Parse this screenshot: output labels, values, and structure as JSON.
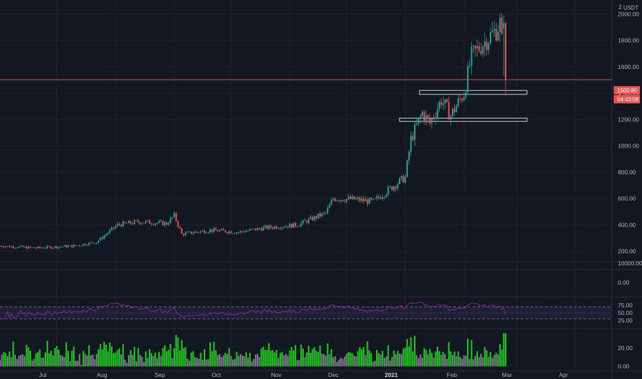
{
  "header": {
    "scale_mode": "2",
    "currency": "USDT"
  },
  "price_axis": {
    "ticks": [
      "2000.00",
      "1800.00",
      "1600.00",
      "1400.00",
      "1200.00",
      "1000.00",
      "800.00",
      "600.00",
      "400.00",
      "200.00"
    ]
  },
  "volume_axis": {
    "ticks": [
      "10000.00",
      "0.00"
    ]
  },
  "rsi_axis": {
    "ticks": [
      "75.00",
      "50.00",
      "25.00"
    ]
  },
  "osc_axis": {
    "ticks": [
      "20.00",
      "0.00"
    ]
  },
  "last_price": {
    "value": "1500.80",
    "countdown": "04:43:08"
  },
  "time_axis": {
    "labels": [
      "Jul",
      "Aug",
      "Sep",
      "Oct",
      "Nov",
      "Dec",
      "2021",
      "Feb",
      "Mar",
      "Apr"
    ]
  },
  "colors": {
    "background": "#131722",
    "up": "#26a69a",
    "down": "#ef5350",
    "rsi": "#9c27b0",
    "hist_up": "#1fc41f",
    "hist": "#787b86",
    "price_line": "#ef5350"
  },
  "chart_data": {
    "type": "candlestick",
    "price_range": [
      130,
      2080
    ],
    "zones": [
      {
        "from": 1390,
        "to": 1420
      },
      {
        "from": 1185,
        "to": 1210
      }
    ],
    "rsi_levels": [
      70,
      30
    ],
    "rsi_range": [
      0,
      100
    ],
    "hist_range": [
      -1,
      40
    ],
    "waypoints": [
      [
        "2020-06-01",
        240
      ],
      [
        "2020-06-20",
        225
      ],
      [
        "2020-07-10",
        240
      ],
      [
        "2020-07-22",
        270
      ],
      [
        "2020-08-02",
        400
      ],
      [
        "2020-08-14",
        425
      ],
      [
        "2020-08-28",
        410
      ],
      [
        "2020-09-01",
        470
      ],
      [
        "2020-09-05",
        330
      ],
      [
        "2020-09-20",
        360
      ],
      [
        "2020-10-05",
        345
      ],
      [
        "2020-10-20",
        380
      ],
      [
        "2020-11-05",
        400
      ],
      [
        "2020-11-20",
        490
      ],
      [
        "2020-11-24",
        600
      ],
      [
        "2020-12-05",
        595
      ],
      [
        "2020-12-15",
        575
      ],
      [
        "2020-12-28",
        720
      ],
      [
        "2021-01-01",
        760
      ],
      [
        "2021-01-04",
        1050
      ],
      [
        "2021-01-10",
        1250
      ],
      [
        "2021-01-14",
        1170
      ],
      [
        "2021-01-20",
        1350
      ],
      [
        "2021-01-25",
        1230
      ],
      [
        "2021-02-01",
        1400
      ],
      [
        "2021-02-05",
        1680
      ],
      [
        "2021-02-10",
        1760
      ],
      [
        "2021-02-18",
        1880
      ],
      [
        "2021-02-20",
        1930
      ],
      [
        "2021-02-23",
        1500.8
      ]
    ]
  }
}
